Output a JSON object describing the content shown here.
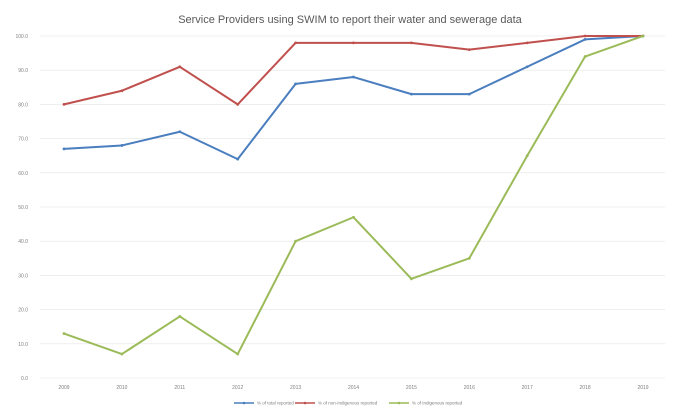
{
  "chart_data": {
    "type": "line",
    "title": "Service Providers using SWIM to report their water and sewerage data",
    "x": [
      "2009",
      "2010",
      "2011",
      "2012",
      "2013",
      "2014",
      "2015",
      "2016",
      "2017",
      "2018",
      "2019"
    ],
    "y_ticks": [
      "0.0",
      "10.0",
      "20.0",
      "30.0",
      "40.0",
      "50.0",
      "60.0",
      "70.0",
      "80.0",
      "90.0",
      "100.0"
    ],
    "ylim": [
      0,
      100
    ],
    "grid": true,
    "legend_position": "bottom",
    "series": [
      {
        "name": "% of total reported",
        "color": "#4a7ebf",
        "values": [
          67,
          68,
          72,
          64,
          86,
          88,
          83,
          83,
          91,
          99,
          100
        ]
      },
      {
        "name": "% of non-Indigenous reported",
        "color": "#c0504d",
        "values": [
          80,
          84,
          91,
          80,
          98,
          98,
          98,
          96,
          98,
          100,
          100
        ]
      },
      {
        "name": "% of Indigenous reported",
        "color": "#9bbb59",
        "values": [
          13,
          7,
          18,
          7,
          40,
          47,
          29,
          35,
          65,
          94,
          100
        ]
      }
    ]
  }
}
